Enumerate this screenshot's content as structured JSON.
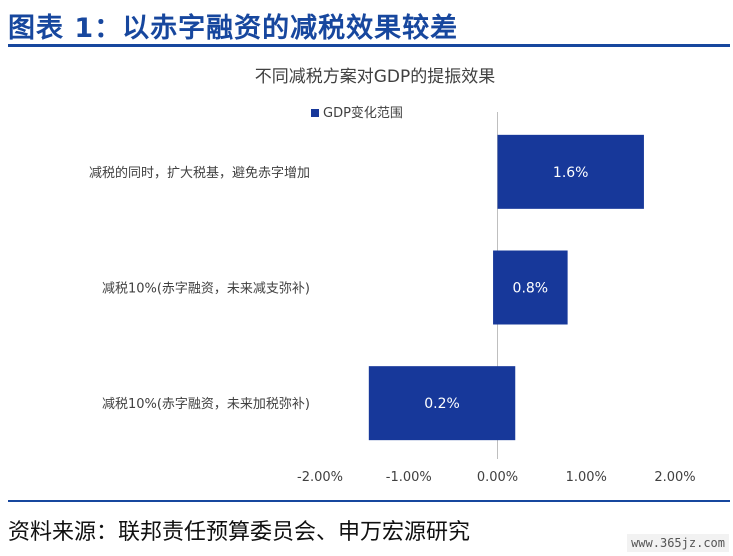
{
  "header": {
    "title": "图表 1：以赤字融资的减税效果较差"
  },
  "footer": {
    "source": "资料来源：联邦责任预算委员会、申万宏源研究",
    "watermark": "www.365jz.com"
  },
  "colors": {
    "brand": "#17479e",
    "bar": "#17389a",
    "axis": "#bfbfbf",
    "text": "#404040"
  },
  "chart_data": {
    "type": "bar",
    "orientation": "horizontal",
    "bar_style": "floating-range",
    "title": "不同减税方案对GDP的提振效果",
    "legend": {
      "label": "GDP变化范围",
      "placement": "top-left"
    },
    "xlabel": "",
    "ylabel": "",
    "xlim": [
      -0.02,
      0.02
    ],
    "x_ticks": [
      {
        "value": -0.02,
        "label": "-2.00%"
      },
      {
        "value": -0.01,
        "label": "-1.00%"
      },
      {
        "value": 0.0,
        "label": "0.00%"
      },
      {
        "value": 0.01,
        "label": "1.00%"
      },
      {
        "value": 0.02,
        "label": "2.00%"
      }
    ],
    "grid": false,
    "categories": [
      "减税的同时，扩大税基，避免赤字增加",
      "减税10%(赤字融资，未来减支弥补)",
      "减税10%(赤字融资，未来加税弥补)"
    ],
    "ranges": [
      {
        "low": 0.0,
        "high": 0.0165,
        "label": "1.6%"
      },
      {
        "low": -0.0005,
        "high": 0.0079,
        "label": "0.8%"
      },
      {
        "low": -0.0145,
        "high": 0.002,
        "label": "0.2%"
      }
    ]
  }
}
